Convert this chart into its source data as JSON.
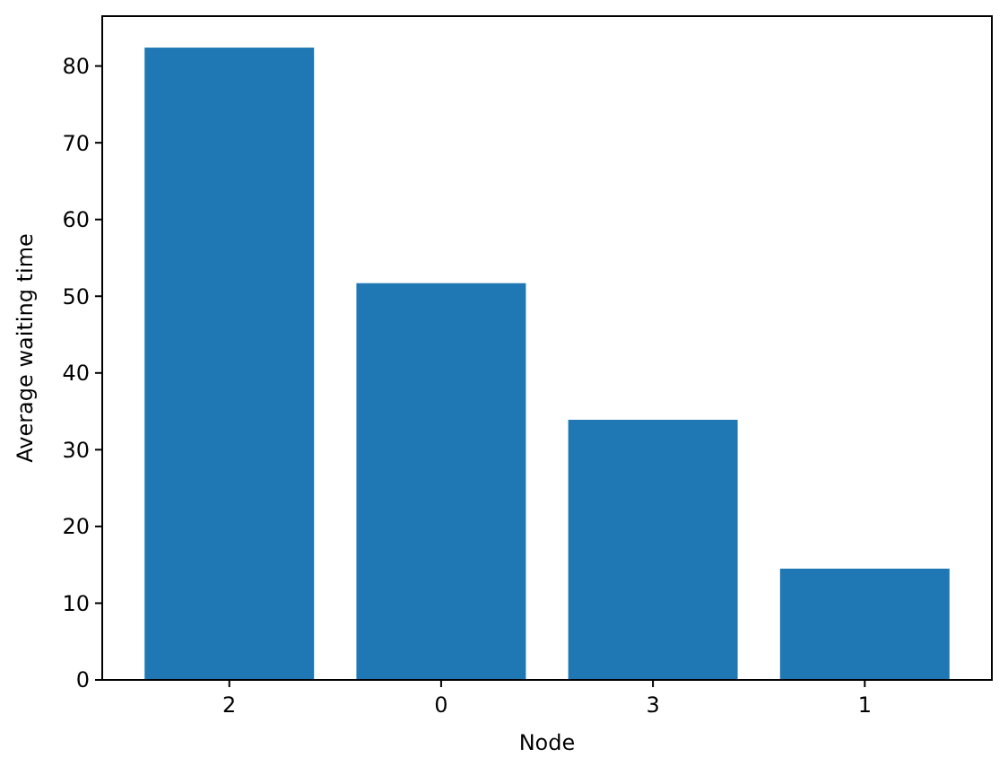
{
  "chart_data": {
    "type": "bar",
    "xlabel": "Node",
    "ylabel": "Average waiting time",
    "categories": [
      "2",
      "0",
      "3",
      "1"
    ],
    "values": [
      82.4,
      51.7,
      33.9,
      14.5
    ],
    "color": "#1f77b4",
    "ylim": [
      0,
      86.5
    ],
    "yticks": [
      0,
      10,
      20,
      30,
      40,
      50,
      60,
      70,
      80
    ]
  }
}
